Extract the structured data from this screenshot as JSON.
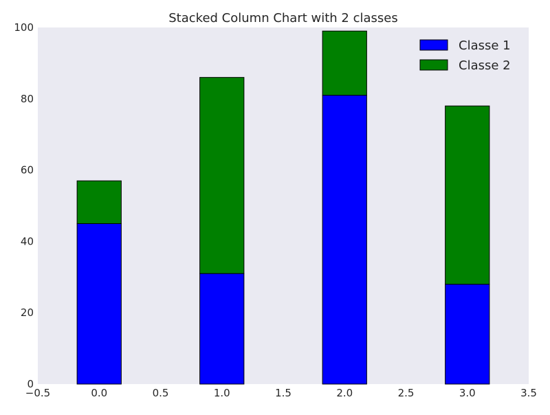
{
  "chart_data": {
    "type": "bar",
    "stacked": true,
    "title": "Stacked Column Chart with 2 classes",
    "xlabel": "",
    "ylabel": "",
    "x": [
      0,
      1,
      2,
      3
    ],
    "bar_width": 0.36,
    "xlim": [
      -0.5,
      3.5
    ],
    "ylim": [
      0,
      100
    ],
    "xticks": [
      -0.5,
      0.0,
      0.5,
      1.0,
      1.5,
      2.0,
      2.5,
      3.0,
      3.5
    ],
    "xtick_labels": [
      "−0.5",
      "0.0",
      "0.5",
      "1.0",
      "1.5",
      "2.0",
      "2.5",
      "3.0",
      "3.5"
    ],
    "yticks": [
      0,
      20,
      40,
      60,
      80,
      100
    ],
    "ytick_labels": [
      "0",
      "20",
      "40",
      "60",
      "80",
      "100"
    ],
    "series": [
      {
        "name": "Classe 1",
        "color": "#0000ff",
        "values": [
          45,
          31,
          81,
          28
        ]
      },
      {
        "name": "Classe 2",
        "color": "#008000",
        "values": [
          12,
          55,
          18,
          50
        ]
      }
    ],
    "grid": false,
    "background": "#eaeaf2",
    "legend_position": "top-right"
  }
}
